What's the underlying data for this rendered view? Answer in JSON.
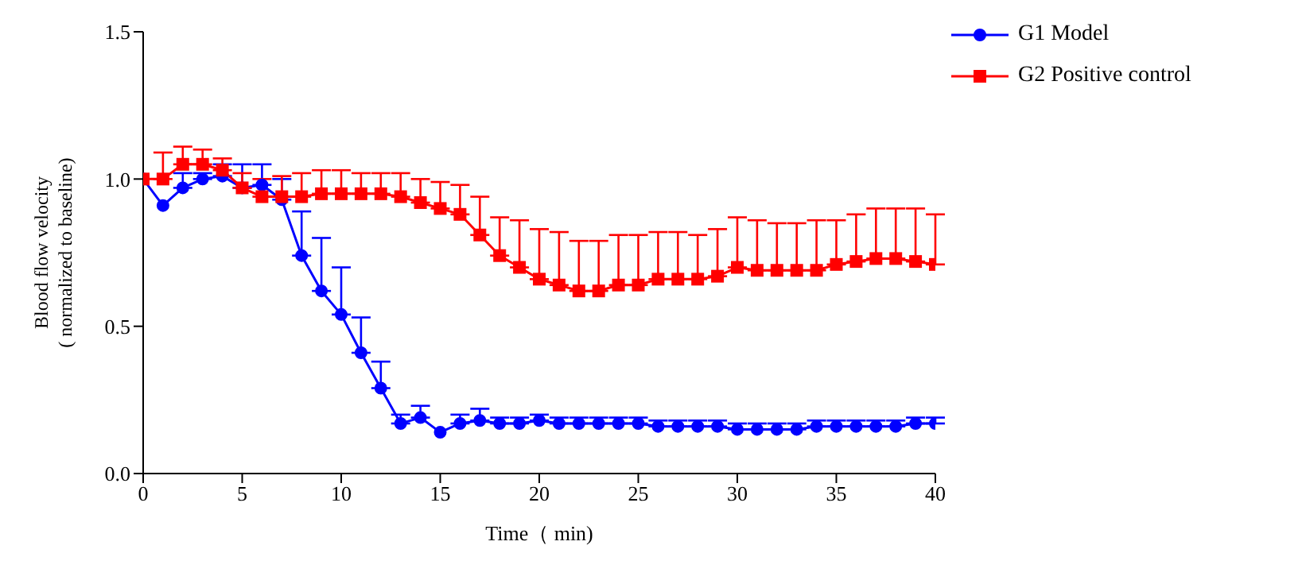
{
  "chart_data": {
    "type": "line",
    "xlabel": "Time（ min)",
    "ylabel": "Blood flow velocity\n( normalized to baseline)",
    "x": [
      0,
      1,
      2,
      3,
      4,
      5,
      6,
      7,
      8,
      9,
      10,
      11,
      12,
      13,
      14,
      15,
      16,
      17,
      18,
      19,
      20,
      21,
      22,
      23,
      24,
      25,
      26,
      27,
      28,
      29,
      30,
      31,
      32,
      33,
      34,
      35,
      36,
      37,
      38,
      39,
      40
    ],
    "xlim": [
      0,
      40
    ],
    "xticks": [
      0,
      5,
      10,
      15,
      20,
      25,
      30,
      35,
      40
    ],
    "ylim": [
      0,
      1.5
    ],
    "yticks": [
      {
        "value": 0,
        "label": "0.0"
      },
      {
        "value": 0.5,
        "label": "0.5"
      },
      {
        "value": 1,
        "label": "1.0"
      },
      {
        "value": 1.5,
        "label": "1.5"
      }
    ],
    "grid": false,
    "legend": "top right",
    "line_style": "solid",
    "series": [
      {
        "name": "G1 Model",
        "color": "#0000ff",
        "marker": "circle",
        "values": [
          1.0,
          0.91,
          0.97,
          1.0,
          1.01,
          0.97,
          0.98,
          0.93,
          0.74,
          0.62,
          0.54,
          0.41,
          0.29,
          0.17,
          0.19,
          0.14,
          0.17,
          0.18,
          0.17,
          0.17,
          0.18,
          0.17,
          0.17,
          0.17,
          0.17,
          0.17,
          0.16,
          0.16,
          0.16,
          0.16,
          0.15,
          0.15,
          0.15,
          0.15,
          0.16,
          0.16,
          0.16,
          0.16,
          0.16,
          0.17,
          0.17
        ],
        "errors": [
          null,
          null,
          [
            0.97,
            1.02
          ],
          [
            1.0,
            1.02
          ],
          [
            1.01,
            1.05
          ],
          [
            0.97,
            1.05
          ],
          [
            0.98,
            1.05
          ],
          [
            0.93,
            1.0
          ],
          [
            0.74,
            0.89
          ],
          [
            0.62,
            0.8
          ],
          [
            0.54,
            0.7
          ],
          [
            0.41,
            0.53
          ],
          [
            0.29,
            0.38
          ],
          [
            0.17,
            0.2
          ],
          [
            0.19,
            0.23
          ],
          null,
          [
            0.17,
            0.2
          ],
          [
            0.18,
            0.22
          ],
          [
            0.17,
            0.19
          ],
          [
            0.17,
            0.19
          ],
          [
            0.18,
            0.2
          ],
          [
            0.17,
            0.19
          ],
          [
            0.17,
            0.19
          ],
          [
            0.17,
            0.19
          ],
          [
            0.17,
            0.19
          ],
          [
            0.17,
            0.19
          ],
          [
            0.16,
            0.18
          ],
          [
            0.16,
            0.18
          ],
          [
            0.16,
            0.18
          ],
          [
            0.16,
            0.18
          ],
          [
            0.15,
            0.17
          ],
          [
            0.15,
            0.17
          ],
          [
            0.15,
            0.17
          ],
          [
            0.15,
            0.17
          ],
          [
            0.16,
            0.18
          ],
          [
            0.16,
            0.18
          ],
          [
            0.16,
            0.18
          ],
          [
            0.16,
            0.18
          ],
          [
            0.16,
            0.18
          ],
          [
            0.17,
            0.19
          ],
          [
            0.17,
            0.19
          ]
        ]
      },
      {
        "name": "G2 Positive control",
        "color": "#ff0000",
        "marker": "square",
        "values": [
          1.0,
          1.0,
          1.05,
          1.05,
          1.03,
          0.97,
          0.94,
          0.94,
          0.94,
          0.95,
          0.95,
          0.95,
          0.95,
          0.94,
          0.92,
          0.9,
          0.88,
          0.81,
          0.74,
          0.7,
          0.66,
          0.64,
          0.62,
          0.62,
          0.64,
          0.64,
          0.66,
          0.66,
          0.66,
          0.67,
          0.7,
          0.69,
          0.69,
          0.69,
          0.69,
          0.71,
          0.72,
          0.73,
          0.73,
          0.72,
          0.71
        ],
        "errors": [
          null,
          [
            1.0,
            1.09
          ],
          [
            1.05,
            1.11
          ],
          [
            1.05,
            1.1
          ],
          [
            1.03,
            1.07
          ],
          [
            0.97,
            1.02
          ],
          [
            0.94,
            1.0
          ],
          [
            0.94,
            1.01
          ],
          [
            0.94,
            1.02
          ],
          [
            0.95,
            1.03
          ],
          [
            0.95,
            1.03
          ],
          [
            0.95,
            1.02
          ],
          [
            0.95,
            1.02
          ],
          [
            0.94,
            1.02
          ],
          [
            0.92,
            1.0
          ],
          [
            0.9,
            0.99
          ],
          [
            0.88,
            0.98
          ],
          [
            0.81,
            0.94
          ],
          [
            0.74,
            0.87
          ],
          [
            0.7,
            0.86
          ],
          [
            0.66,
            0.83
          ],
          [
            0.64,
            0.82
          ],
          [
            0.62,
            0.79
          ],
          [
            0.62,
            0.79
          ],
          [
            0.64,
            0.81
          ],
          [
            0.64,
            0.81
          ],
          [
            0.66,
            0.82
          ],
          [
            0.66,
            0.82
          ],
          [
            0.66,
            0.81
          ],
          [
            0.67,
            0.83
          ],
          [
            0.7,
            0.87
          ],
          [
            0.69,
            0.86
          ],
          [
            0.69,
            0.85
          ],
          [
            0.69,
            0.85
          ],
          [
            0.69,
            0.86
          ],
          [
            0.71,
            0.86
          ],
          [
            0.72,
            0.88
          ],
          [
            0.73,
            0.9
          ],
          [
            0.73,
            0.9
          ],
          [
            0.72,
            0.9
          ],
          [
            0.71,
            0.88
          ]
        ]
      }
    ]
  }
}
